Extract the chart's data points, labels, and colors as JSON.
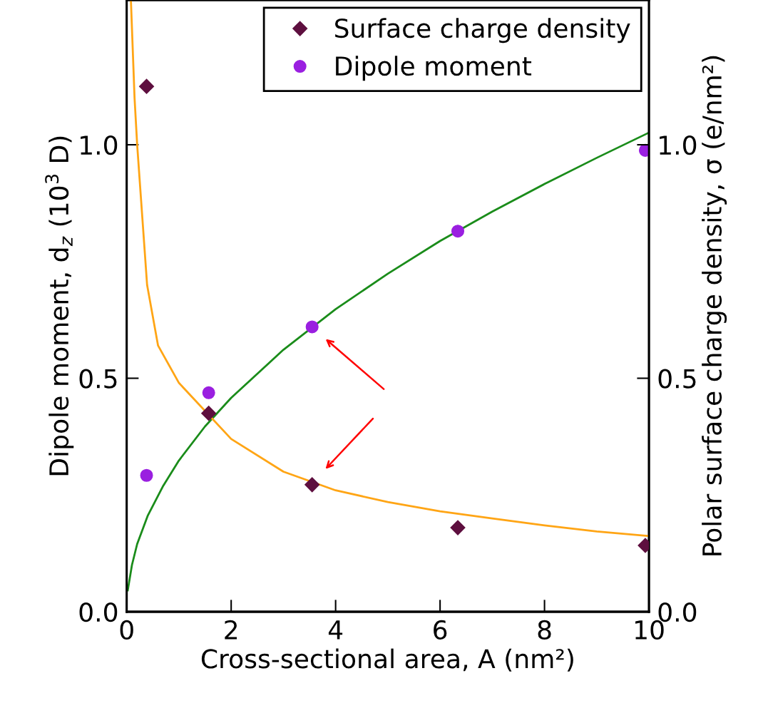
{
  "chart_data": {
    "type": "scatter",
    "xlabel": "Cross-sectional area, A (nm²)",
    "ylabel": "Dipole moment, d$_{z}$ (10$^{3}$ D)",
    "y2label": "Polar surface charge density, σ (e/nm²)",
    "xlim": [
      0,
      10
    ],
    "xticks": [
      0,
      2,
      4,
      6,
      8,
      10
    ],
    "ylim": [
      0,
      1.31
    ],
    "yticks": [
      {
        "value": 0,
        "label": "0.0"
      },
      {
        "value": 0.5,
        "label": "0.5"
      },
      {
        "value": 1,
        "label": "1.0"
      }
    ],
    "y2lim": [
      0,
      1.31
    ],
    "y2ticks": [
      {
        "value": 0,
        "label": "0.0"
      },
      {
        "value": 0.5,
        "label": "0.5"
      },
      {
        "value": 1,
        "label": "1.0"
      }
    ],
    "grid": false,
    "legend": "top right",
    "series": [
      {
        "name": "Surface charge density",
        "marker": "diamond",
        "axis": "y2",
        "color": "#5e0f3f",
        "x": [
          0.38,
          1.57,
          3.55,
          6.34,
          9.93
        ],
        "values": [
          1.125,
          0.425,
          0.272,
          0.18,
          0.142
        ]
      },
      {
        "name": "Dipole moment",
        "marker": "circle",
        "axis": "y",
        "color": "#9a1fe0",
        "x": [
          0.38,
          1.57,
          3.55,
          6.34,
          9.93
        ],
        "values": [
          0.292,
          0.469,
          0.61,
          0.815,
          0.988
        ]
      },
      {
        "type": "line",
        "axis": "y",
        "color": "#1a8c1a",
        "marker": "none",
        "x": [
          0.02,
          0.1,
          0.2,
          0.4,
          0.7,
          1,
          1.5,
          2,
          3,
          4,
          5,
          6,
          7,
          8,
          9,
          10
        ],
        "values": [
          0.046,
          0.1,
          0.145,
          0.205,
          0.27,
          0.324,
          0.397,
          0.458,
          0.561,
          0.648,
          0.724,
          0.794,
          0.857,
          0.916,
          0.972,
          1.026
        ]
      },
      {
        "type": "line",
        "axis": "y2",
        "color": "#ffa515",
        "marker": "none",
        "x": [
          0.08,
          0.15,
          0.2,
          0.39,
          0.6,
          1,
          2,
          3,
          4,
          5,
          6,
          7,
          8,
          9,
          10
        ],
        "values": [
          1.31,
          1.1,
          1.0,
          0.7,
          0.57,
          0.49,
          0.37,
          0.3,
          0.26,
          0.235,
          0.215,
          0.2,
          0.185,
          0.172,
          0.162
        ]
      }
    ]
  }
}
